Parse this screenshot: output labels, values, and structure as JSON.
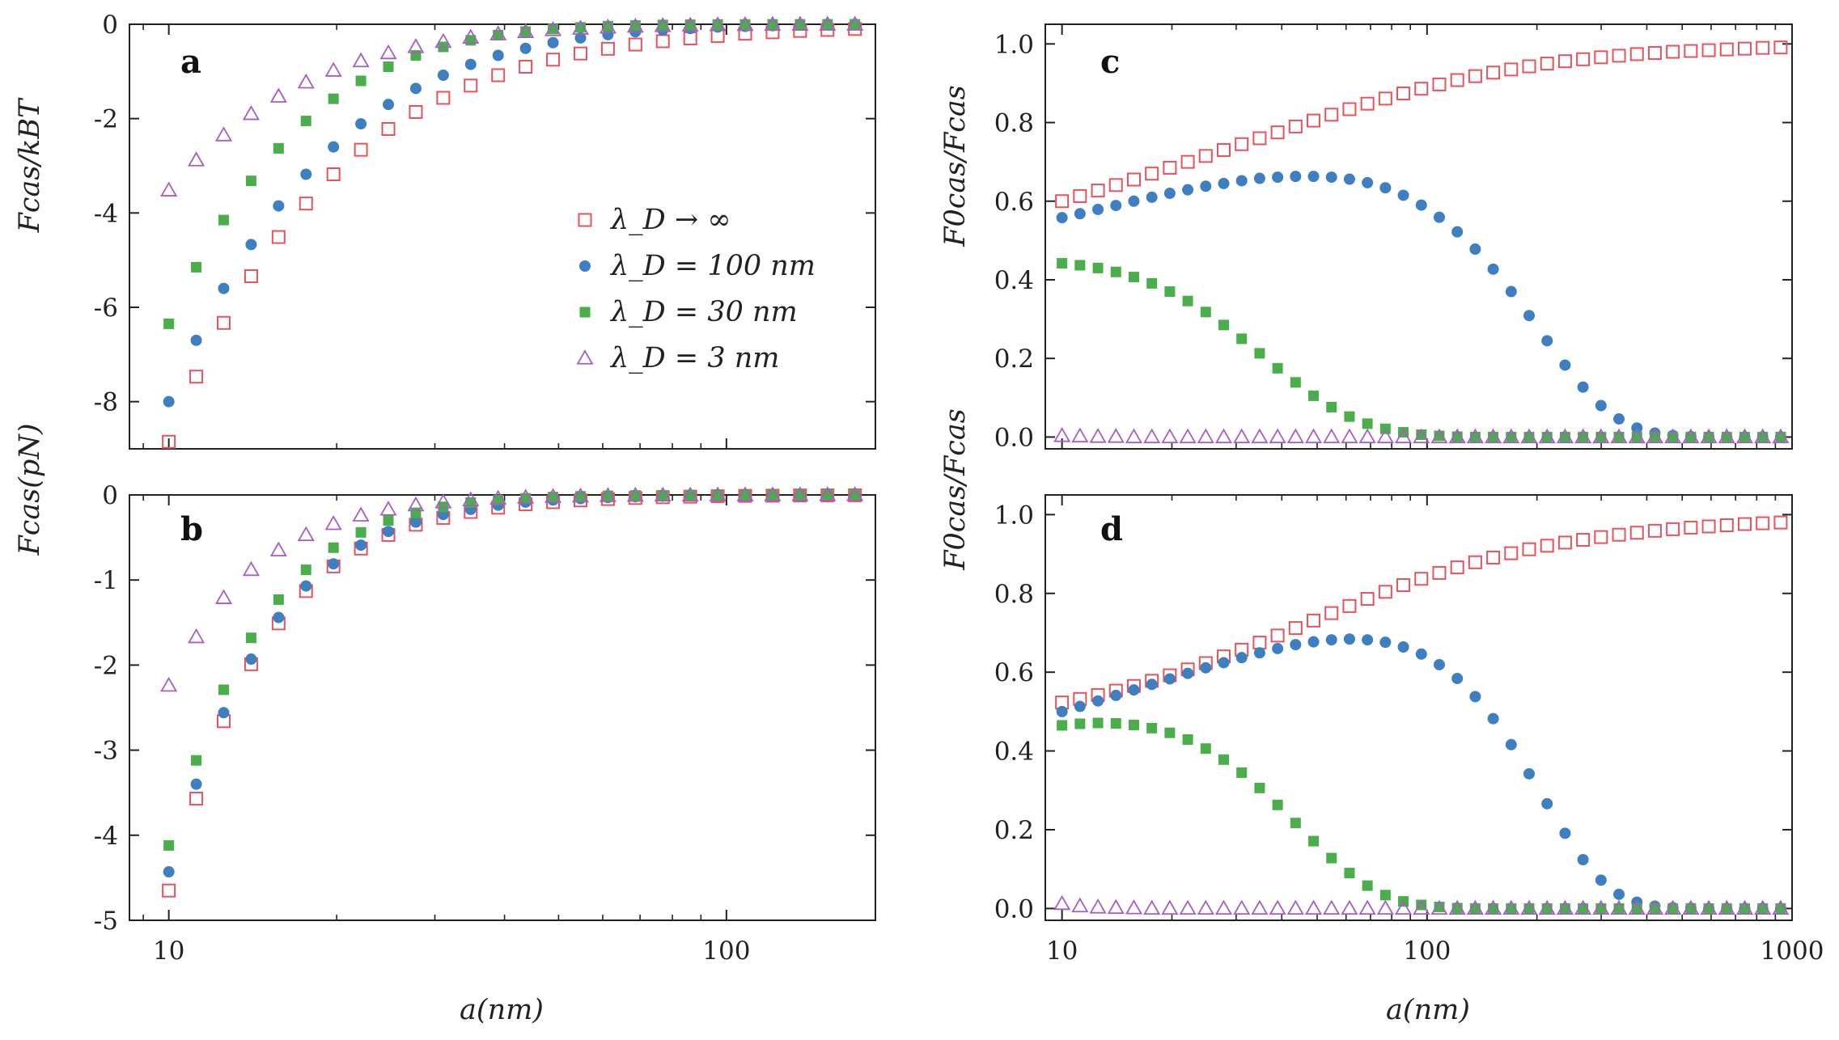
{
  "colors": {
    "infinite": "#e8525a",
    "nm100": "#3d7fc0",
    "nm30": "#4aae4a",
    "nm3": "#a45ec6",
    "axis": "#222222"
  },
  "legend": {
    "entries": [
      {
        "label": "λ_D → ∞",
        "marker": "square-open",
        "color_key": "infinite"
      },
      {
        "label": "λ_D = 100 nm",
        "marker": "circle",
        "color_key": "nm100"
      },
      {
        "label": "λ_D = 30 nm",
        "marker": "square",
        "color_key": "nm30"
      },
      {
        "label": "λ_D = 3 nm",
        "marker": "triangle-open",
        "color_key": "nm3"
      }
    ]
  },
  "chart_data": [
    {
      "panel": "a",
      "type": "scatter",
      "xlabel": "",
      "ylabel": "Fcas/kBT",
      "xscale": "log",
      "xlim": [
        8.5,
        185
      ],
      "ylim": [
        -9,
        0
      ],
      "xticks": [
        10,
        100
      ],
      "xticklabels": [
        "",
        ""
      ],
      "yticks": [
        0,
        -2,
        -4,
        -6,
        -8
      ],
      "yticklabels": [
        "0",
        "-2",
        "-4",
        "-6",
        "-8"
      ],
      "x_start": 10,
      "x_ratio": 1.12,
      "x_count": 27,
      "series": [
        {
          "name": "λ_D → ∞",
          "color_key": "infinite",
          "marker": "square-open",
          "values": [
            -8.85,
            -7.47,
            -6.33,
            -5.34,
            -4.51,
            -3.8,
            -3.18,
            -2.66,
            -2.22,
            -1.86,
            -1.56,
            -1.3,
            -1.08,
            -0.9,
            -0.75,
            -0.62,
            -0.52,
            -0.43,
            -0.36,
            -0.3,
            -0.25,
            -0.2,
            -0.17,
            -0.14,
            -0.12,
            -0.1,
            -0.08
          ]
        },
        {
          "name": "λ_D = 100 nm",
          "color_key": "nm100",
          "marker": "circle",
          "values": [
            -8.0,
            -6.7,
            -5.6,
            -4.67,
            -3.85,
            -3.18,
            -2.6,
            -2.11,
            -1.7,
            -1.36,
            -1.08,
            -0.85,
            -0.66,
            -0.51,
            -0.39,
            -0.29,
            -0.22,
            -0.16,
            -0.12,
            -0.09,
            -0.06,
            -0.045,
            -0.03,
            -0.02,
            -0.015,
            -0.01,
            -0.008
          ]
        },
        {
          "name": "λ_D = 30 nm",
          "color_key": "nm30",
          "marker": "square",
          "values": [
            -6.35,
            -5.15,
            -4.15,
            -3.32,
            -2.63,
            -2.05,
            -1.58,
            -1.2,
            -0.9,
            -0.66,
            -0.48,
            -0.34,
            -0.23,
            -0.155,
            -0.1,
            -0.065,
            -0.04,
            -0.025,
            -0.015,
            -0.009,
            -0.005,
            -0.003,
            -0.002,
            -0.001,
            -0.001,
            0,
            0
          ]
        },
        {
          "name": "λ_D = 3 nm",
          "color_key": "nm3",
          "marker": "triangle-open",
          "values": [
            -3.52,
            -2.88,
            -2.35,
            -1.9,
            -1.53,
            -1.23,
            -0.98,
            -0.78,
            -0.61,
            -0.48,
            -0.37,
            -0.28,
            -0.21,
            -0.16,
            -0.12,
            -0.09,
            -0.065,
            -0.047,
            -0.034,
            -0.024,
            -0.017,
            -0.012,
            -0.008,
            -0.006,
            -0.004,
            -0.003,
            -0.002
          ]
        }
      ]
    },
    {
      "panel": "b",
      "type": "scatter",
      "xlabel": "a(nm)",
      "ylabel": "Fcas(pN)",
      "xscale": "log",
      "xlim": [
        8.5,
        185
      ],
      "ylim": [
        -5,
        0
      ],
      "xticks": [
        10,
        100
      ],
      "xticklabels": [
        "10",
        "100"
      ],
      "yticks": [
        0,
        -1,
        -2,
        -3,
        -4,
        -5
      ],
      "yticklabels": [
        "0",
        "-1",
        "-2",
        "-3",
        "-4",
        "-5"
      ],
      "x_start": 10,
      "x_ratio": 1.12,
      "x_count": 27,
      "series": [
        {
          "name": "λ_D → ∞",
          "color_key": "infinite",
          "marker": "square-open",
          "values": [
            -4.65,
            -3.57,
            -2.66,
            -1.99,
            -1.51,
            -1.13,
            -0.84,
            -0.63,
            -0.47,
            -0.35,
            -0.27,
            -0.2,
            -0.15,
            -0.11,
            -0.085,
            -0.064,
            -0.048,
            -0.036,
            -0.027,
            -0.02,
            -0.015,
            -0.011,
            -0.009,
            -0.006,
            -0.005,
            -0.004,
            -0.003
          ]
        },
        {
          "name": "λ_D = 100 nm",
          "color_key": "nm100",
          "marker": "circle",
          "values": [
            -4.43,
            -3.4,
            -2.56,
            -1.93,
            -1.44,
            -1.07,
            -0.81,
            -0.59,
            -0.43,
            -0.32,
            -0.23,
            -0.17,
            -0.12,
            -0.085,
            -0.06,
            -0.043,
            -0.03,
            -0.021,
            -0.015,
            -0.01,
            -0.007,
            -0.005,
            -0.004,
            -0.003,
            -0.002,
            -0.001,
            -0.001
          ]
        },
        {
          "name": "λ_D = 30 nm",
          "color_key": "nm30",
          "marker": "square",
          "values": [
            -4.12,
            -3.12,
            -2.29,
            -1.68,
            -1.23,
            -0.88,
            -0.62,
            -0.44,
            -0.3,
            -0.21,
            -0.14,
            -0.09,
            -0.06,
            -0.04,
            -0.025,
            -0.016,
            -0.01,
            -0.006,
            -0.004,
            -0.002,
            -0.001,
            -0.001,
            0,
            0,
            0,
            0,
            0
          ]
        },
        {
          "name": "λ_D = 3 nm",
          "color_key": "nm3",
          "marker": "triangle-open",
          "values": [
            -2.24,
            -1.67,
            -1.21,
            -0.88,
            -0.65,
            -0.47,
            -0.34,
            -0.24,
            -0.17,
            -0.12,
            -0.085,
            -0.06,
            -0.042,
            -0.03,
            -0.021,
            -0.015,
            -0.01,
            -0.007,
            -0.005,
            -0.004,
            -0.003,
            -0.002,
            -0.001,
            -0.001,
            0,
            0,
            0
          ]
        }
      ]
    },
    {
      "panel": "c",
      "type": "scatter",
      "xlabel": "",
      "ylabel": "F0cas/Fcas",
      "xscale": "log",
      "xlim": [
        9,
        1000
      ],
      "ylim": [
        -0.03,
        1.05
      ],
      "xticks": [
        10,
        100,
        1000
      ],
      "xticklabels": [
        "",
        "",
        ""
      ],
      "yticks": [
        0,
        0.2,
        0.4,
        0.6,
        0.8,
        1.0
      ],
      "yticklabels": [
        "0.0",
        "0.2",
        "0.4",
        "0.6",
        "0.8",
        "1.0"
      ],
      "x_start": 10,
      "x_ratio": 1.12,
      "x_count": 41,
      "series": [
        {
          "name": "λ_D → ∞",
          "color_key": "infinite",
          "marker": "square-open",
          "values": [
            0.6,
            0.613,
            0.627,
            0.641,
            0.655,
            0.67,
            0.685,
            0.7,
            0.715,
            0.73,
            0.745,
            0.76,
            0.775,
            0.79,
            0.805,
            0.82,
            0.834,
            0.848,
            0.861,
            0.874,
            0.886,
            0.897,
            0.908,
            0.918,
            0.927,
            0.935,
            0.943,
            0.95,
            0.956,
            0.961,
            0.966,
            0.97,
            0.974,
            0.977,
            0.98,
            0.982,
            0.984,
            0.986,
            0.988,
            0.99,
            0.991
          ]
        },
        {
          "name": "λ_D = 100 nm",
          "color_key": "nm100",
          "marker": "circle",
          "values": [
            0.558,
            0.568,
            0.579,
            0.589,
            0.6,
            0.61,
            0.62,
            0.629,
            0.638,
            0.645,
            0.652,
            0.658,
            0.661,
            0.663,
            0.663,
            0.661,
            0.656,
            0.647,
            0.634,
            0.615,
            0.59,
            0.559,
            0.522,
            0.478,
            0.427,
            0.37,
            0.309,
            0.245,
            0.183,
            0.127,
            0.08,
            0.046,
            0.023,
            0.01,
            0.004,
            0.001,
            0,
            0,
            0,
            0,
            0
          ]
        },
        {
          "name": "λ_D = 30 nm",
          "color_key": "nm30",
          "marker": "square",
          "values": [
            0.442,
            0.437,
            0.43,
            0.42,
            0.407,
            0.391,
            0.37,
            0.346,
            0.318,
            0.285,
            0.25,
            0.213,
            0.175,
            0.139,
            0.105,
            0.076,
            0.052,
            0.034,
            0.021,
            0.012,
            0.006,
            0.003,
            0.001,
            0,
            0,
            0,
            0,
            0,
            0,
            0,
            0,
            0,
            0,
            0,
            0,
            0,
            0,
            0,
            0,
            0,
            0
          ]
        },
        {
          "name": "λ_D = 3 nm",
          "color_key": "nm3",
          "marker": "triangle-open",
          "values": [
            0.003,
            0.002,
            0.001,
            0.001,
            0,
            0,
            0,
            0,
            0,
            0,
            0,
            0,
            0,
            0,
            0,
            0,
            0,
            0,
            0,
            0,
            0,
            0,
            0,
            0,
            0,
            0,
            0,
            0,
            0,
            0,
            0,
            0,
            0,
            0,
            0,
            0,
            0,
            0,
            0,
            0,
            0
          ]
        }
      ]
    },
    {
      "panel": "d",
      "type": "scatter",
      "xlabel": "a(nm)",
      "ylabel": "F0cas/Fcas",
      "xscale": "log",
      "xlim": [
        9,
        1000
      ],
      "ylim": [
        -0.03,
        1.05
      ],
      "xticks": [
        10,
        100,
        1000
      ],
      "xticklabels": [
        "10",
        "100",
        "1000"
      ],
      "yticks": [
        0,
        0.2,
        0.4,
        0.6,
        0.8,
        1.0
      ],
      "yticklabels": [
        "0.0",
        "0.2",
        "0.4",
        "0.6",
        "0.8",
        "1.0"
      ],
      "x_start": 10,
      "x_ratio": 1.12,
      "x_count": 41,
      "series": [
        {
          "name": "λ_D → ∞",
          "color_key": "infinite",
          "marker": "square-open",
          "values": [
            0.523,
            0.532,
            0.542,
            0.553,
            0.565,
            0.578,
            0.592,
            0.607,
            0.623,
            0.64,
            0.657,
            0.675,
            0.693,
            0.712,
            0.731,
            0.75,
            0.768,
            0.786,
            0.804,
            0.821,
            0.837,
            0.852,
            0.866,
            0.879,
            0.891,
            0.902,
            0.912,
            0.921,
            0.929,
            0.936,
            0.943,
            0.949,
            0.954,
            0.959,
            0.963,
            0.967,
            0.97,
            0.973,
            0.976,
            0.978,
            0.98
          ]
        },
        {
          "name": "λ_D = 100 nm",
          "color_key": "nm100",
          "marker": "circle",
          "values": [
            0.5,
            0.513,
            0.527,
            0.541,
            0.555,
            0.569,
            0.583,
            0.597,
            0.611,
            0.624,
            0.637,
            0.649,
            0.66,
            0.67,
            0.677,
            0.682,
            0.684,
            0.682,
            0.676,
            0.664,
            0.646,
            0.619,
            0.584,
            0.538,
            0.482,
            0.416,
            0.342,
            0.266,
            0.191,
            0.124,
            0.072,
            0.036,
            0.016,
            0.006,
            0.002,
            0.001,
            0,
            0,
            0,
            0,
            0
          ]
        },
        {
          "name": "λ_D = 30 nm",
          "color_key": "nm30",
          "marker": "square",
          "values": [
            0.465,
            0.469,
            0.471,
            0.47,
            0.466,
            0.458,
            0.446,
            0.429,
            0.406,
            0.378,
            0.345,
            0.306,
            0.263,
            0.217,
            0.171,
            0.128,
            0.09,
            0.058,
            0.034,
            0.018,
            0.009,
            0.004,
            0.001,
            0,
            0,
            0,
            0,
            0,
            0,
            0,
            0,
            0,
            0,
            0,
            0,
            0,
            0,
            0,
            0,
            0,
            0
          ]
        },
        {
          "name": "λ_D = 3 nm",
          "color_key": "nm3",
          "marker": "triangle-open",
          "values": [
            0.012,
            0.006,
            0.003,
            0.002,
            0.001,
            0,
            0,
            0,
            0,
            0,
            0,
            0,
            0,
            0,
            0,
            0,
            0,
            0,
            0,
            0,
            0,
            0,
            0,
            0,
            0,
            0,
            0,
            0,
            0,
            0,
            0,
            0,
            0,
            0,
            0,
            0,
            0,
            0,
            0,
            0,
            0
          ]
        }
      ]
    }
  ]
}
